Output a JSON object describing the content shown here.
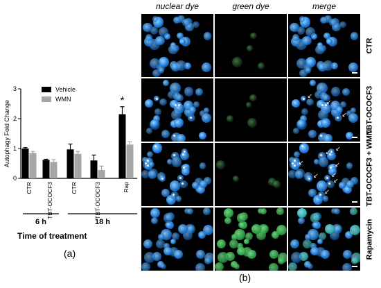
{
  "chart_data": {
    "type": "bar",
    "ylabel": "Autophagy Fold Change",
    "xlabel": "Time of treatment",
    "ylim": [
      0,
      3
    ],
    "yticks": [
      0,
      1,
      2,
      3
    ],
    "categories": [
      "CTR",
      "TBT-OCOCF3",
      "CTR",
      "TBT-OCOCF3",
      "Rap"
    ],
    "groups": [
      {
        "label": "6 h",
        "categories": [
          0,
          1
        ]
      },
      {
        "label": "18 h",
        "categories": [
          2,
          3,
          4
        ]
      }
    ],
    "series": [
      {
        "name": "Vehicle",
        "color": "#000000",
        "values": [
          1.0,
          0.62,
          0.97,
          0.6,
          2.15
        ],
        "errors": [
          0.03,
          0.02,
          0.18,
          0.18,
          0.25
        ]
      },
      {
        "name": "WMN",
        "color": "#a6a6a6",
        "values": [
          0.85,
          0.55,
          0.82,
          0.28,
          1.13
        ],
        "errors": [
          0.05,
          0.08,
          0.08,
          0.13,
          0.1
        ]
      }
    ],
    "annotations": [
      {
        "text": "*",
        "category": 4,
        "series": 0
      }
    ],
    "legend": "top-right",
    "grid": false
  },
  "panels": {
    "a": "(a)",
    "b": "(b)"
  },
  "microscopy": {
    "columns": [
      "nuclear dye",
      "green dye",
      "merge"
    ],
    "rows": [
      "CTR",
      "TBT-OCOCF3",
      "TBT-OCOCF3 + WMN",
      "Rapamycin"
    ],
    "colors": {
      "nuclear": "#1f7fe0",
      "green": "#2fa84a",
      "background": "#000000"
    }
  }
}
